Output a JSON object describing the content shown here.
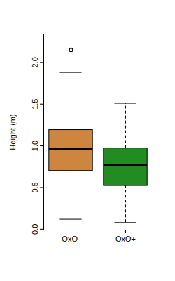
{
  "chart_data": {
    "type": "boxplot",
    "categories": [
      "OxO-",
      "OxO+"
    ],
    "colors": [
      "#CD853F",
      "#228B22"
    ],
    "whisker_low": [
      0.12,
      0.08
    ],
    "q1": [
      0.7,
      0.52
    ],
    "median": [
      0.96,
      0.77
    ],
    "q3": [
      1.19,
      0.97
    ],
    "whisker_high": [
      1.88,
      1.51
    ],
    "outliers": [
      [
        2.15
      ],
      []
    ],
    "y_label": "Height (m)",
    "ylim": [
      -0.01,
      2.34
    ],
    "yticks": [
      {
        "value": 0,
        "label": "0.0"
      },
      {
        "value": 0.5,
        "label": "0.5"
      },
      {
        "value": 1,
        "label": "1.0"
      },
      {
        "value": 1.5,
        "label": "1.5"
      },
      {
        "value": 2,
        "label": "2.0"
      }
    ]
  }
}
